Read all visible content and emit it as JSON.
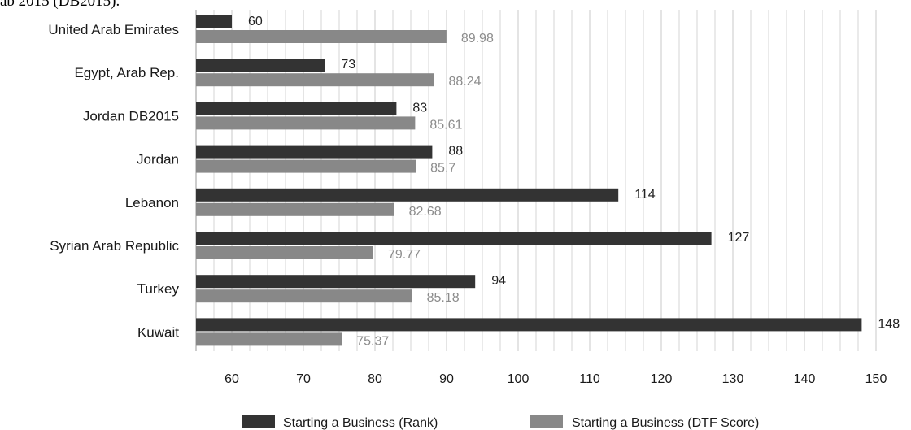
{
  "header_fragment": "ab 2015 (DB2015).",
  "colors": {
    "rank": "#333333",
    "dtf": "#888888",
    "grid": "#d4d4d4",
    "dtf_label": "#8c8c8c"
  },
  "chart_data": {
    "type": "bar",
    "orientation": "horizontal",
    "categories": [
      "United Arab Emirates",
      "Egypt, Arab Rep.",
      "Jordan DB2015",
      "Jordan",
      "Lebanon",
      "Syrian Arab Republic",
      "Turkey",
      "Kuwait"
    ],
    "series": [
      {
        "name": "Starting a Business (Rank)",
        "values": [
          60,
          73,
          83,
          88,
          114,
          127,
          94,
          148
        ],
        "labels": [
          "60",
          "73",
          "83",
          "88",
          "114",
          "127",
          "94",
          "148"
        ]
      },
      {
        "name": "Starting a Business (DTF Score)",
        "values": [
          89.98,
          88.24,
          85.61,
          85.7,
          82.68,
          79.77,
          85.18,
          75.37
        ],
        "labels": [
          "89.98",
          "88.24",
          "85.61",
          "85.7",
          "82.68",
          "79.77",
          "85.18",
          "75.37"
        ]
      }
    ],
    "xlim": [
      55,
      150
    ],
    "xticks": [
      "60",
      "70",
      "80",
      "90",
      "100",
      "110",
      "120",
      "130",
      "140",
      "150"
    ],
    "minor_grid_step": 2.5,
    "grid": true,
    "legend": "bottom",
    "title": "",
    "xlabel": "",
    "ylabel": ""
  }
}
